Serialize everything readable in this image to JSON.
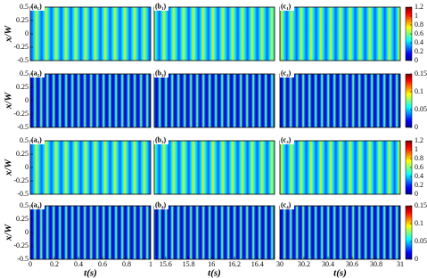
{
  "chart_data": [
    {
      "type": "heatmap",
      "label": "(a₁)",
      "ylabel": "x/W",
      "ylim": [
        -0.5,
        0.5
      ],
      "yticks": [
        0.5,
        0.25,
        0,
        -0.25,
        -0.5
      ]
    },
    {
      "type": "heatmap",
      "label": "(b₁)"
    },
    {
      "type": "heatmap",
      "label": "(c₁)",
      "colorbar": {
        "lim": [
          0,
          1.2
        ],
        "ticks": [
          0,
          0.2,
          0.4,
          0.6,
          0.8,
          1,
          1.2
        ]
      }
    },
    {
      "type": "heatmap",
      "label": "(a₂)",
      "ylabel": "x/W",
      "ylim": [
        -0.5,
        0.5
      ],
      "yticks": [
        0.5,
        0.25,
        0,
        -0.25,
        -0.5
      ]
    },
    {
      "type": "heatmap",
      "label": "(b₂)"
    },
    {
      "type": "heatmap",
      "label": "(c₂)",
      "colorbar": {
        "lim": [
          0,
          0.15
        ],
        "ticks": [
          0,
          0.05,
          0.1,
          0.15
        ]
      }
    },
    {
      "type": "heatmap",
      "label": "(a₃)",
      "ylabel": "x/W",
      "ylim": [
        -0.5,
        0.5
      ],
      "yticks": [
        0.5,
        0.25,
        0,
        -0.25,
        -0.5
      ]
    },
    {
      "type": "heatmap",
      "label": "(b₃)"
    },
    {
      "type": "heatmap",
      "label": "(c₃)",
      "colorbar": {
        "lim": [
          0,
          1.2
        ],
        "ticks": [
          0,
          0.2,
          0.4,
          0.6,
          0.8,
          1,
          1.2
        ]
      }
    },
    {
      "type": "heatmap",
      "label": "(a₄)",
      "ylabel": "x/W",
      "ylim": [
        -0.5,
        0.5
      ],
      "yticks": [
        0.5,
        0.25,
        0,
        -0.25,
        -0.5
      ],
      "xlabel": "t(s)",
      "xlim": [
        0,
        1
      ],
      "xticks": [
        0,
        0.2,
        0.4,
        0.6,
        0.8,
        1
      ]
    },
    {
      "type": "heatmap",
      "label": "(b₄)",
      "xlabel": "t(s)",
      "xlim": [
        15.5,
        16.55
      ],
      "xticks": [
        15.6,
        15.8,
        16,
        16.2,
        16.4
      ]
    },
    {
      "type": "heatmap",
      "label": "(c₄)",
      "colorbar": {
        "lim": [
          0,
          0.15
        ],
        "ticks": [
          0,
          0.05,
          0.1,
          0.15
        ]
      },
      "xlabel": "t(s)",
      "xlim": [
        30,
        31
      ],
      "xticks": [
        30,
        30.2,
        30.4,
        30.6,
        30.8,
        31
      ]
    }
  ]
}
